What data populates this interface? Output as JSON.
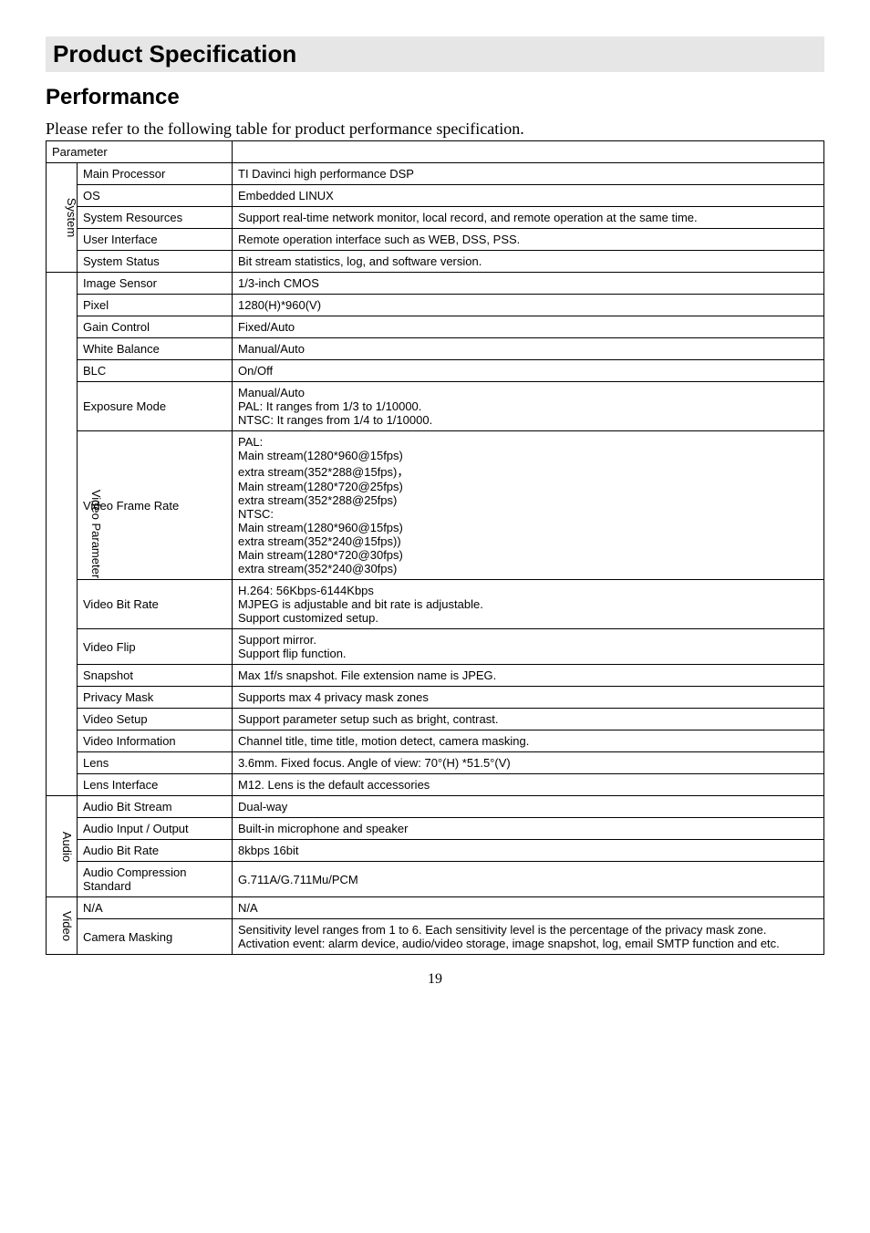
{
  "page": {
    "title": "Product Specification",
    "section": "Performance",
    "intro": "Please refer to the following table for product performance specification.",
    "page_number": "19"
  },
  "table": {
    "header_param": "Parameter",
    "groups": [
      {
        "label": "System",
        "rows": [
          {
            "param": "Main Processor",
            "value": "TI Davinci high performance DSP"
          },
          {
            "param": "OS",
            "value": "Embedded LINUX"
          },
          {
            "param": "System Resources",
            "value": "Support real-time network monitor, local record, and remote operation at the same time."
          },
          {
            "param": "User Interface",
            "value": "Remote operation interface such as WEB, DSS, PSS."
          },
          {
            "param": "System Status",
            "value": "Bit stream statistics, log, and software version."
          }
        ]
      },
      {
        "label": "Video Parameter",
        "rows": [
          {
            "param": "Image Sensor",
            "value": "1/3-inch CMOS"
          },
          {
            "param": "Pixel",
            "value": "1280(H)*960(V)"
          },
          {
            "param": "Gain Control",
            "value": "Fixed/Auto"
          },
          {
            "param": "White Balance",
            "value": "Manual/Auto"
          },
          {
            "param": "BLC",
            "value": "On/Off"
          },
          {
            "param": "Exposure Mode",
            "value": "Manual/Auto\nPAL: It ranges from 1/3 to 1/10000.\nNTSC: It ranges from 1/4 to 1/10000."
          },
          {
            "param": "Video Frame Rate",
            "value": "PAL:\nMain stream(1280*960@15fps)\nextra stream(352*288@15fps)，\nMain stream(1280*720@25fps)\nextra stream(352*288@25fps)\nNTSC:\nMain stream(1280*960@15fps)\nextra stream(352*240@15fps))\nMain stream(1280*720@30fps)\nextra stream(352*240@30fps)"
          },
          {
            "param": "Video Bit Rate",
            "value": "H.264: 56Kbps-6144Kbps\nMJPEG is adjustable and bit rate is adjustable.\nSupport customized setup."
          },
          {
            "param": "Video Flip",
            "value": "Support mirror.\nSupport flip function."
          },
          {
            "param": "Snapshot",
            "value": "Max 1f/s snapshot. File extension name is JPEG."
          },
          {
            "param": "Privacy Mask",
            "value": "Supports max 4 privacy mask zones"
          },
          {
            "param": "Video Setup",
            "value": "Support parameter setup such as bright, contrast."
          },
          {
            "param": "Video Information",
            "value": "Channel title, time title, motion detect, camera masking."
          },
          {
            "param": "Lens",
            "value": "3.6mm. Fixed focus. Angle of view: 70°(H)  *51.5°(V)"
          },
          {
            "param": "Lens Interface",
            "value": "M12. Lens is the default accessories"
          }
        ]
      },
      {
        "label": "Audio",
        "rows": [
          {
            "param": "Audio Bit Stream",
            "value": "Dual-way"
          },
          {
            "param": "Audio Input / Output",
            "value": "Built-in microphone and speaker"
          },
          {
            "param": "Audio Bit  Rate",
            "value": "8kbps  16bit"
          },
          {
            "param": "Audio Compression Standard",
            "value": "G.711A/G.711Mu/PCM"
          }
        ]
      },
      {
        "label": "Video",
        "rows": [
          {
            "param": "N/A",
            "value": "N/A"
          },
          {
            "param": "Camera Masking",
            "value": "Sensitivity level ranges from 1 to 6. Each sensitivity level is the percentage of the privacy mask zone.\nActivation event: alarm device, audio/video storage, image snapshot, log, email SMTP function and etc."
          }
        ]
      }
    ]
  }
}
